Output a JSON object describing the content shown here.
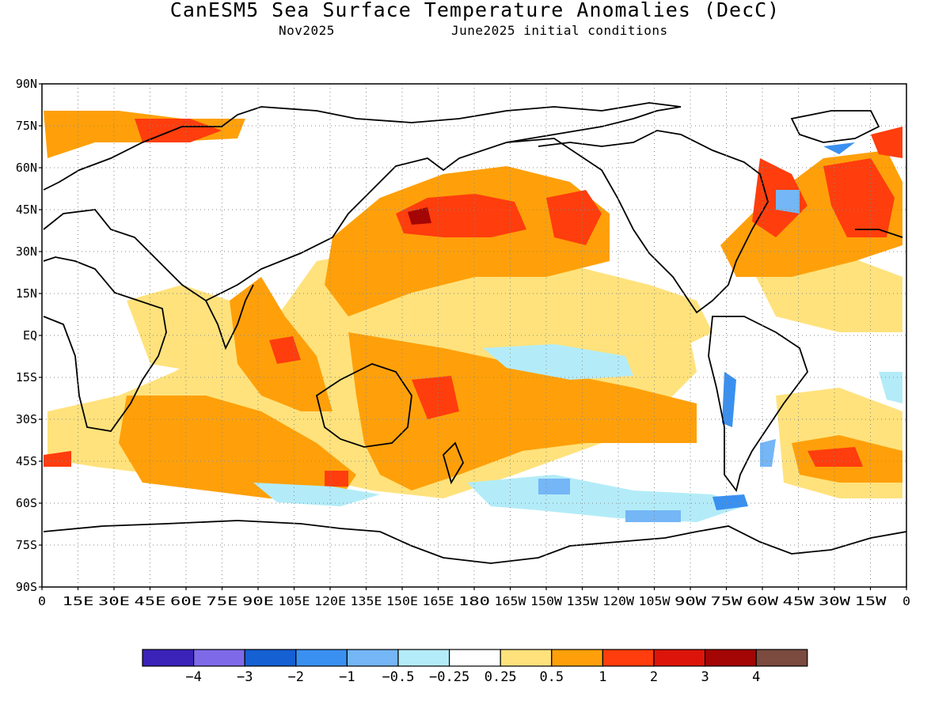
{
  "title": "CanESM5 Sea Surface Temperature Anomalies (DecC)",
  "subtitle_left": "Nov2025",
  "subtitle_right": "June2025 initial conditions",
  "map": {
    "lat_labels": [
      "90N",
      "75N",
      "60N",
      "45N",
      "30N",
      "15N",
      "EQ",
      "15S",
      "30S",
      "45S",
      "60S",
      "75S",
      "90S"
    ],
    "lon_labels": [
      "0",
      "15E",
      "30E",
      "45E",
      "60E",
      "75E",
      "90E",
      "105E",
      "120E",
      "135E",
      "150E",
      "165E",
      "180",
      "165W",
      "150W",
      "135W",
      "120W",
      "105W",
      "90W",
      "75W",
      "60W",
      "45W",
      "30W",
      "15W",
      "0"
    ],
    "projection": "cylindrical equidistant",
    "lon_range": [
      0,
      360
    ],
    "lat_range": [
      -90,
      90
    ],
    "grid": "dotted"
  },
  "legend": {
    "colors": [
      "#3b22b8",
      "#7e6ae8",
      "#1560d2",
      "#3a90f0",
      "#74b6f6",
      "#b3ecf8",
      "#ffffff",
      "#ffe27c",
      "#ffa00a",
      "#ff3d0d",
      "#dd140a",
      "#a40505",
      "#7a4b3e"
    ],
    "labels": [
      "−4",
      "−3",
      "−2",
      "−1",
      "−0.5",
      "−0.25",
      "0.25",
      "0.5",
      "1",
      "2",
      "3",
      "4"
    ]
  }
}
